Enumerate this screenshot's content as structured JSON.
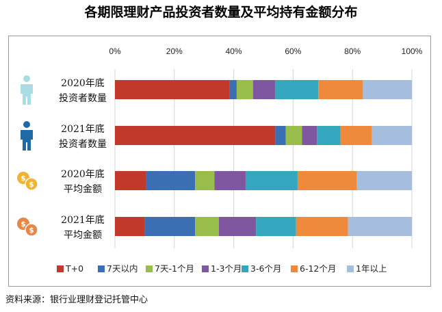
{
  "title": "各期限理财产品投资者数量及平均持有金额分布",
  "source": "资料来源：银行业理财登记托管中心",
  "chart_data": {
    "type": "bar",
    "orientation": "horizontal",
    "stacked": true,
    "x_ticks": [
      "0%",
      "20%",
      "40%",
      "60%",
      "80%",
      "100%"
    ],
    "xlim": [
      0,
      100
    ],
    "grid": true,
    "legend_position": "bottom",
    "categories": [
      {
        "line1": "2020年底",
        "line2": "投资者数量",
        "icon": "person-icon",
        "icon_color": "#a9dde4"
      },
      {
        "line1": "2021年底",
        "line2": "投资者数量",
        "icon": "person-icon",
        "icon_color": "#1f6aa5"
      },
      {
        "line1": "2020年底",
        "line2": "平均金额",
        "icon": "coins-icon",
        "icon_color": "#f2b232"
      },
      {
        "line1": "2021年底",
        "line2": "平均金额",
        "icon": "coins-icon",
        "icon_color": "#e98645"
      }
    ],
    "series": [
      {
        "name": "T+0",
        "color": "#c0392b",
        "values": [
          38.5,
          54,
          10.5,
          10
        ]
      },
      {
        "name": "7天以内",
        "color": "#3c6eb4",
        "values": [
          2.5,
          3.5,
          16.5,
          17
        ]
      },
      {
        "name": "7天-1个月",
        "color": "#98bd4a",
        "values": [
          5.5,
          5.5,
          6.5,
          8
        ]
      },
      {
        "name": "1-3个月",
        "color": "#7e57a0",
        "values": [
          7.5,
          5,
          10.5,
          12.5
        ]
      },
      {
        "name": "3-6个月",
        "color": "#34a7be",
        "values": [
          14.5,
          8,
          17.5,
          13.5
        ]
      },
      {
        "name": "6-12个月",
        "color": "#ef8a3c",
        "values": [
          15,
          10.5,
          20,
          17.5
        ]
      },
      {
        "name": "1年以上",
        "color": "#a6bedd",
        "values": [
          16.5,
          13.5,
          18.5,
          21.5
        ]
      }
    ]
  }
}
